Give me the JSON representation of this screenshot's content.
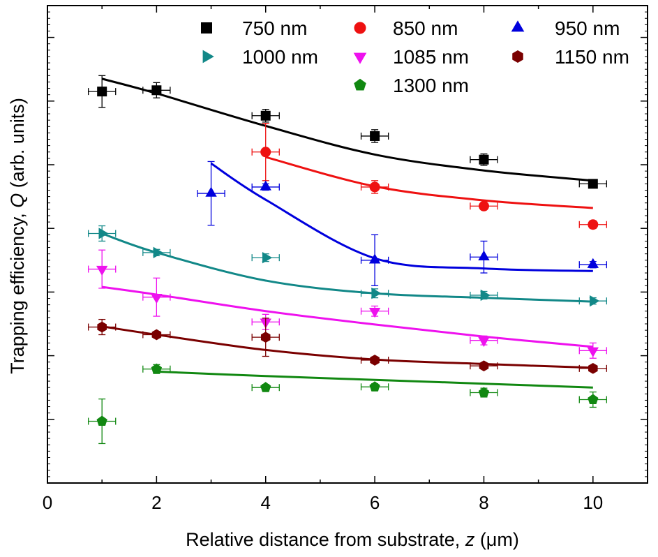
{
  "chart_data": {
    "type": "scatter",
    "title": "",
    "xlabel_text": "Relative distance from substrate, ",
    "xlabel_var": "z",
    "xlabel_unit": " (μm)",
    "ylabel_text": "Trapping efficiency, ",
    "ylabel_var": "Q",
    "ylabel_unit": " (arb. units)",
    "xlim": [
      0,
      11
    ],
    "ylim": [
      0,
      7.5
    ],
    "x_ticks": [
      0,
      2,
      4,
      6,
      8,
      10
    ],
    "x_tick_labels": [
      "0",
      "2",
      "4",
      "6",
      "8",
      "10"
    ],
    "y_major_ticks": [
      1,
      2,
      3,
      4,
      5,
      6,
      7
    ],
    "y_tick_labels_shown": false,
    "grid": false,
    "legend_position": "top",
    "series": [
      {
        "name": "750 nm",
        "color": "#000000",
        "marker": "square",
        "x": [
          1,
          2,
          4,
          6,
          8,
          10
        ],
        "y": [
          6.15,
          6.17,
          5.77,
          5.45,
          5.08,
          4.7
        ],
        "yerr": [
          0.25,
          0.12,
          0.1,
          0.1,
          0.09,
          0.04
        ],
        "fit": {
          "x": [
            1,
            2,
            4,
            6,
            8,
            10
          ],
          "y": [
            6.35,
            6.12,
            5.61,
            5.16,
            4.91,
            4.75
          ]
        }
      },
      {
        "name": "850 nm",
        "color": "#ee1111",
        "marker": "circle",
        "x": [
          4,
          6,
          8,
          10
        ],
        "y": [
          5.2,
          4.65,
          4.35,
          4.06
        ],
        "yerr": [
          0.45,
          0.1,
          0.03,
          0.06
        ],
        "fit": {
          "x": [
            4,
            6,
            8,
            10
          ],
          "y": [
            5.12,
            4.66,
            4.44,
            4.32
          ]
        }
      },
      {
        "name": "950 nm",
        "color": "#0000dd",
        "marker": "triangle-up",
        "x": [
          3,
          4,
          6,
          8,
          10
        ],
        "y": [
          4.55,
          4.65,
          3.5,
          3.55,
          3.43
        ],
        "yerr": [
          0.5,
          0.05,
          0.4,
          0.25,
          0.05
        ],
        "fit": {
          "x": [
            3,
            4,
            6,
            8,
            10
          ],
          "y": [
            5.02,
            4.45,
            3.53,
            3.37,
            3.33
          ]
        }
      },
      {
        "name": "1000 nm",
        "color": "#128888",
        "marker": "triangle-right",
        "x": [
          1,
          2,
          4,
          6,
          8,
          10
        ],
        "y": [
          3.92,
          3.62,
          3.54,
          2.98,
          2.95,
          2.86
        ],
        "yerr": [
          0.12,
          0.05,
          0.06,
          0.07,
          0.06,
          0.05
        ],
        "fit": {
          "x": [
            1,
            2,
            4,
            6,
            8,
            10
          ],
          "y": [
            3.92,
            3.62,
            3.18,
            2.98,
            2.91,
            2.85
          ]
        }
      },
      {
        "name": "1085 nm",
        "color": "#ee11ee",
        "marker": "triangle-down",
        "x": [
          1,
          2,
          4,
          6,
          8,
          10
        ],
        "y": [
          3.36,
          2.92,
          2.53,
          2.7,
          2.24,
          2.08
        ],
        "yerr": [
          0.3,
          0.3,
          0.12,
          0.08,
          0.07,
          0.12
        ],
        "fit": {
          "x": [
            1,
            2,
            4,
            6,
            8,
            10
          ],
          "y": [
            3.08,
            2.96,
            2.7,
            2.49,
            2.3,
            2.14
          ]
        }
      },
      {
        "name": "1150 nm",
        "color": "#7a0000",
        "marker": "hexagon",
        "x": [
          1,
          2,
          4,
          6,
          8,
          10
        ],
        "y": [
          2.45,
          2.33,
          2.29,
          1.93,
          1.84,
          1.8
        ],
        "yerr": [
          0.12,
          0.05,
          0.3,
          0.05,
          0.03,
          0.04
        ],
        "fit": {
          "x": [
            1,
            2,
            4,
            6,
            8,
            10
          ],
          "y": [
            2.46,
            2.33,
            2.09,
            1.94,
            1.87,
            1.81
          ]
        }
      },
      {
        "name": "1300 nm",
        "color": "#118811",
        "marker": "pentagon",
        "x": [
          1,
          2,
          4,
          6,
          8,
          10
        ],
        "y": [
          0.97,
          1.79,
          1.5,
          1.51,
          1.42,
          1.31
        ],
        "yerr": [
          0.35,
          0.07,
          0.05,
          0.05,
          0.07,
          0.12
        ],
        "fit": {
          "x": [
            2,
            4,
            6,
            8,
            10
          ],
          "y": [
            1.75,
            1.68,
            1.62,
            1.56,
            1.5
          ]
        }
      }
    ]
  }
}
